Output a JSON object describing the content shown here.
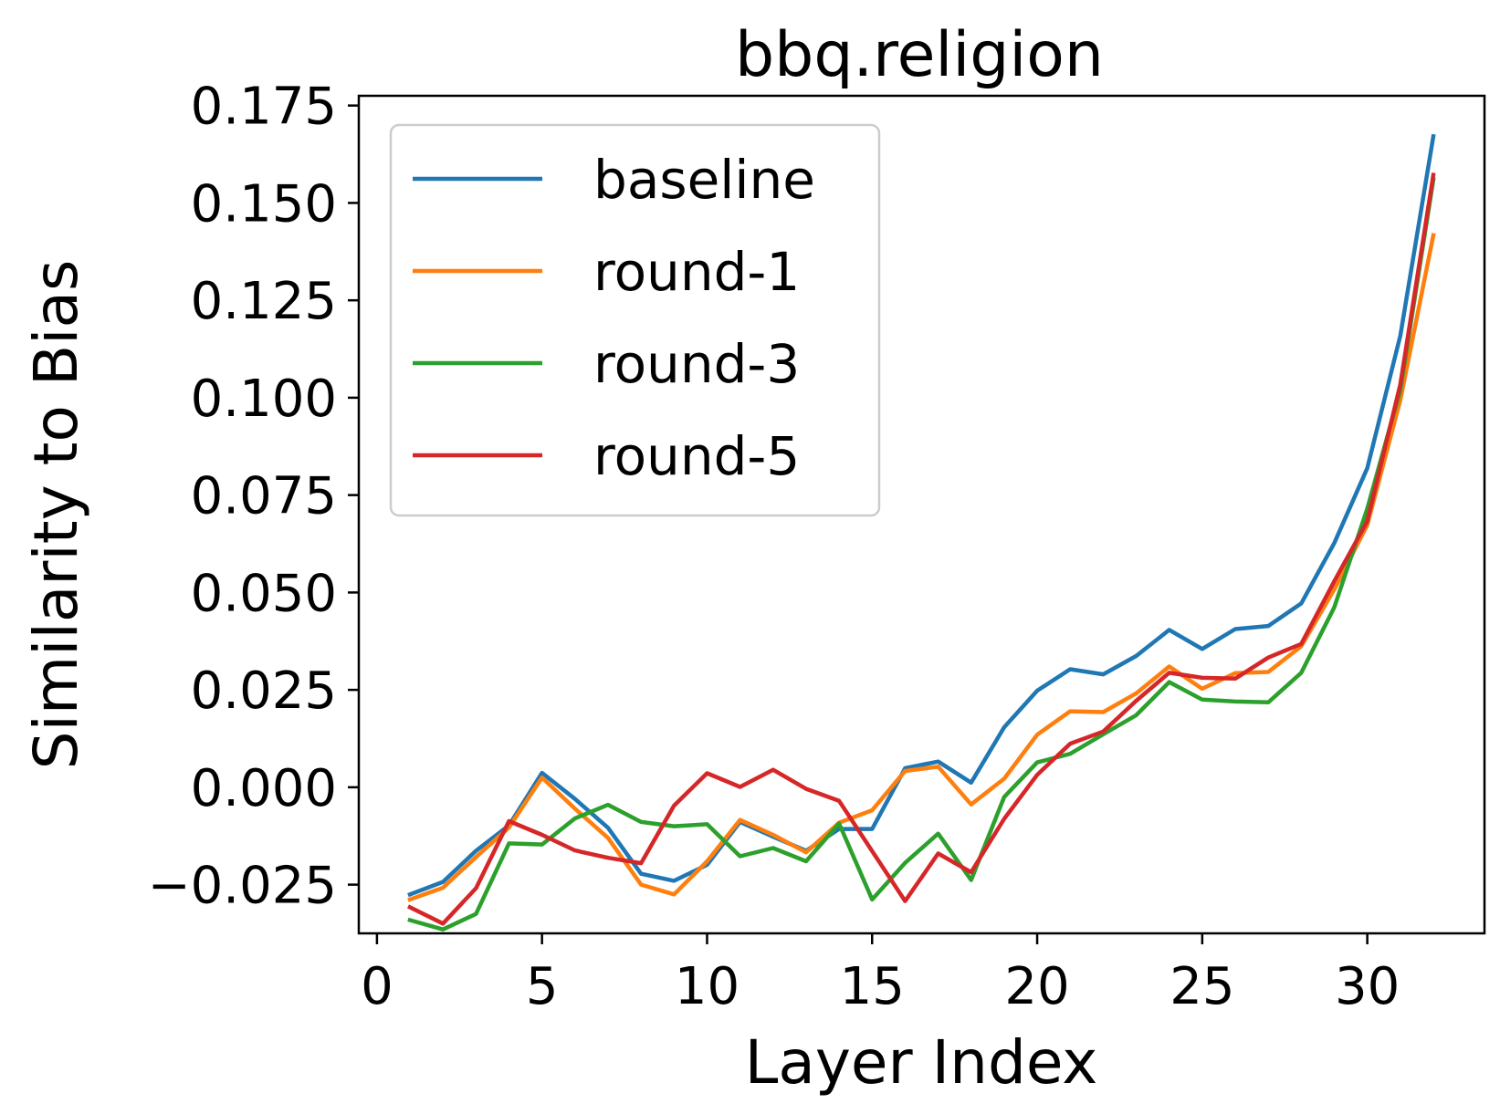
{
  "chart_data": {
    "type": "line",
    "title": "bbq.religion",
    "xlabel": "Layer Index",
    "ylabel": "Similarity to Bias",
    "xlim": [
      -0.55,
      33.55
    ],
    "ylim": [
      -0.0375,
      0.1775
    ],
    "xticks": [
      0,
      5,
      10,
      15,
      20,
      25,
      30
    ],
    "xtick_labels": [
      "0",
      "5",
      "10",
      "15",
      "20",
      "25",
      "30"
    ],
    "yticks": [
      -0.025,
      0.0,
      0.025,
      0.05,
      0.075,
      0.1,
      0.125,
      0.15,
      0.175
    ],
    "ytick_labels": [
      "−0.025",
      "0.000",
      "0.025",
      "0.050",
      "0.075",
      "0.100",
      "0.125",
      "0.150",
      "0.175"
    ],
    "grid": false,
    "legend_position": "upper-left",
    "x": [
      1,
      2,
      3,
      4,
      5,
      6,
      7,
      8,
      9,
      10,
      11,
      12,
      13,
      14,
      15,
      16,
      17,
      18,
      19,
      20,
      21,
      22,
      23,
      24,
      25,
      26,
      27,
      28,
      29,
      30,
      31,
      32
    ],
    "series": [
      {
        "name": "baseline",
        "color": "#1f77b4",
        "values": [
          -0.0275,
          -0.0243,
          -0.0163,
          -0.0098,
          0.0037,
          -0.003,
          -0.0104,
          -0.0222,
          -0.024,
          -0.0199,
          -0.0089,
          -0.0127,
          -0.0163,
          -0.0107,
          -0.0107,
          0.0049,
          0.0066,
          0.0012,
          0.0154,
          0.0248,
          0.0303,
          0.029,
          0.0337,
          0.0404,
          0.0355,
          0.0406,
          0.0414,
          0.0472,
          0.0627,
          0.0819,
          0.1159,
          0.1671
        ]
      },
      {
        "name": "round-1",
        "color": "#ff7f0e",
        "values": [
          -0.0288,
          -0.0258,
          -0.0179,
          -0.0103,
          0.0025,
          -0.0055,
          -0.013,
          -0.025,
          -0.0275,
          -0.019,
          -0.0084,
          -0.0122,
          -0.0167,
          -0.0091,
          -0.0059,
          0.0042,
          0.0053,
          -0.0044,
          0.0022,
          0.0135,
          0.0195,
          0.0193,
          0.0241,
          0.031,
          0.0253,
          0.0293,
          0.0296,
          0.0362,
          0.0508,
          0.0673,
          0.0994,
          0.1417
        ]
      },
      {
        "name": "round-3",
        "color": "#2ca02c",
        "values": [
          -0.0341,
          -0.0365,
          -0.0325,
          -0.0144,
          -0.0147,
          -0.008,
          -0.0045,
          -0.0089,
          -0.01,
          -0.0095,
          -0.0177,
          -0.0156,
          -0.019,
          -0.0093,
          -0.0288,
          -0.0194,
          -0.0119,
          -0.0238,
          -0.0025,
          0.0064,
          0.0086,
          0.0136,
          0.0185,
          0.027,
          0.0225,
          0.022,
          0.0218,
          0.0294,
          0.0462,
          0.0715,
          0.102,
          0.156
        ]
      },
      {
        "name": "round-5",
        "color": "#d62728",
        "values": [
          -0.0308,
          -0.035,
          -0.0259,
          -0.0087,
          -0.0122,
          -0.0162,
          -0.0181,
          -0.0195,
          -0.0047,
          0.0036,
          0.0001,
          0.0045,
          -0.0004,
          -0.0035,
          -0.0164,
          -0.0292,
          -0.017,
          -0.0218,
          -0.0081,
          0.0032,
          0.0112,
          0.0143,
          0.0222,
          0.0294,
          0.0281,
          0.0279,
          0.0333,
          0.0368,
          0.0529,
          0.0683,
          0.1034,
          0.1572
        ]
      }
    ]
  }
}
